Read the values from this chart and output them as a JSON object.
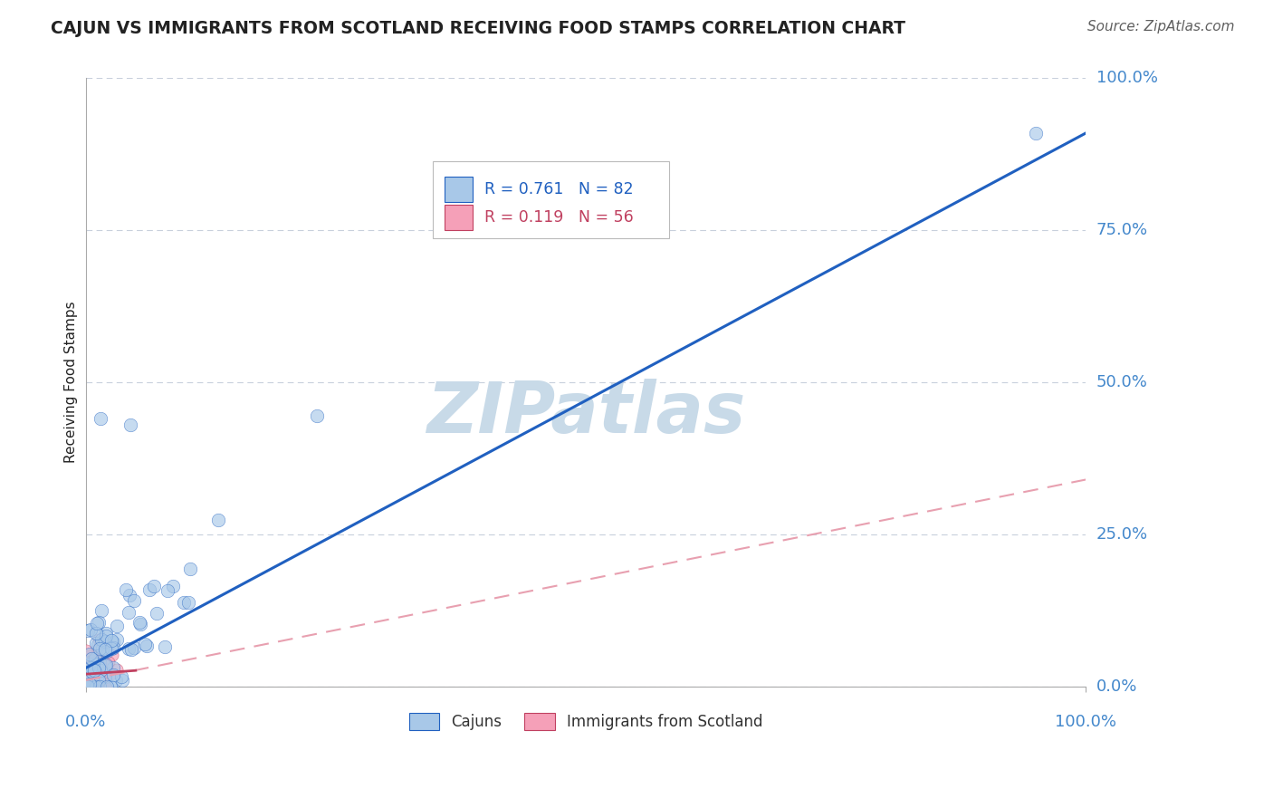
{
  "title": "CAJUN VS IMMIGRANTS FROM SCOTLAND RECEIVING FOOD STAMPS CORRELATION CHART",
  "source": "Source: ZipAtlas.com",
  "ylabel": "Receiving Food Stamps",
  "xlim": [
    0,
    100
  ],
  "ylim": [
    0,
    100
  ],
  "ytick_positions": [
    0,
    25,
    50,
    75,
    100
  ],
  "ytick_labels": [
    "0.0%",
    "25.0%",
    "50.0%",
    "75.0%",
    "100.0%"
  ],
  "cajun_R": 0.761,
  "cajun_N": 82,
  "scotland_R": 0.119,
  "scotland_N": 56,
  "cajun_color": "#a8c8e8",
  "scotland_color": "#f5a0b8",
  "cajun_line_color": "#2060c0",
  "scotland_line_solid_color": "#c04060",
  "scotland_line_dash_color": "#e8a0b0",
  "tick_label_color": "#4488cc",
  "grid_color": "#c8d0dc",
  "background_color": "#ffffff",
  "title_color": "#222222",
  "source_color": "#606060",
  "ylabel_color": "#222222",
  "watermark_text": "ZIPatlas",
  "watermark_color": "#c8dae8",
  "legend_R_color": "#2060c0",
  "legend_text_color": "#222222",
  "cajun_slope": 0.88,
  "cajun_intercept": 3.0,
  "scotland_slope_solid": 0.12,
  "scotland_intercept_solid": 2.0,
  "scotland_slope_dash": 0.33,
  "scotland_intercept_dash": 1.0
}
